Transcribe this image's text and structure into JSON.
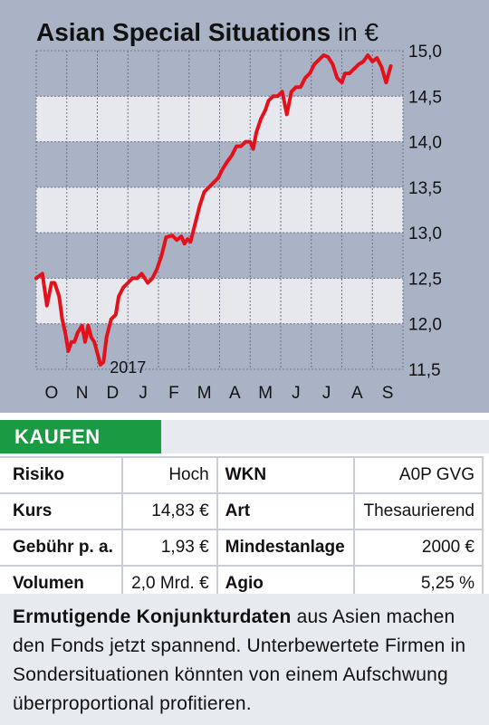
{
  "header": {
    "title_bold": "Asian Special Situations",
    "title_unit": "in €"
  },
  "chart_data": {
    "type": "line",
    "title": "Asian Special Situations in €",
    "xlabel": "",
    "ylabel": "",
    "x_tick_labels": [
      "O",
      "N",
      "D",
      "J",
      "F",
      "M",
      "A",
      "M",
      "J",
      "J",
      "A",
      "S"
    ],
    "year_annotation": "2017",
    "yticks": [
      11.5,
      12.0,
      12.5,
      13.0,
      13.5,
      14.0,
      14.5,
      15.0
    ],
    "ytick_labels": [
      "11,5",
      "12,0",
      "12,5",
      "13,0",
      "13,5",
      "14,0",
      "14,5",
      "15,0"
    ],
    "ylim": [
      11.5,
      15.0
    ],
    "xlim": [
      0,
      12
    ],
    "grid": true,
    "line_color": "#e3111b",
    "series": [
      {
        "x": [
          0.0,
          0.2,
          0.35,
          0.5,
          0.6,
          0.75,
          0.85,
          0.95,
          1.05,
          1.15,
          1.25,
          1.35,
          1.5,
          1.6,
          1.7,
          1.8,
          1.9,
          2.0,
          2.1,
          2.2,
          2.3,
          2.45,
          2.6,
          2.7,
          2.85,
          3.0,
          3.15,
          3.3,
          3.45,
          3.55,
          3.65,
          3.8,
          3.95,
          4.1,
          4.25,
          4.45,
          4.6,
          4.75,
          4.85,
          4.95,
          5.05,
          5.2,
          5.35,
          5.5,
          5.65,
          5.8,
          5.95,
          6.1,
          6.25,
          6.4,
          6.55,
          6.7,
          6.85,
          7.0,
          7.1,
          7.2,
          7.35,
          7.5,
          7.6,
          7.75,
          7.9,
          8.05,
          8.2,
          8.35,
          8.5,
          8.65,
          8.8,
          8.95,
          9.1,
          9.25,
          9.4,
          9.55,
          9.7,
          9.85,
          10.0,
          10.1,
          10.25,
          10.4,
          10.55,
          10.7,
          10.85,
          11.0,
          11.15,
          11.3,
          11.45,
          11.6
        ],
        "y": [
          12.5,
          12.55,
          12.2,
          12.45,
          12.45,
          12.3,
          12.05,
          11.9,
          11.7,
          11.8,
          11.8,
          11.9,
          11.98,
          11.8,
          11.98,
          11.85,
          11.8,
          11.68,
          11.55,
          11.58,
          11.85,
          12.05,
          12.1,
          12.3,
          12.4,
          12.45,
          12.5,
          12.5,
          12.55,
          12.5,
          12.45,
          12.5,
          12.6,
          12.75,
          12.95,
          12.97,
          12.92,
          12.96,
          12.88,
          12.93,
          12.9,
          13.1,
          13.3,
          13.45,
          13.5,
          13.55,
          13.6,
          13.7,
          13.78,
          13.85,
          13.95,
          13.95,
          14.0,
          14.0,
          13.92,
          14.1,
          14.25,
          14.35,
          14.45,
          14.5,
          14.5,
          14.55,
          14.3,
          14.55,
          14.6,
          14.6,
          14.7,
          14.75,
          14.85,
          14.9,
          14.95,
          14.93,
          14.85,
          14.7,
          14.65,
          14.75,
          14.75,
          14.8,
          14.85,
          14.88,
          14.95,
          14.88,
          14.92,
          14.82,
          14.65,
          14.83
        ]
      }
    ]
  },
  "buy": {
    "label": "KAUFEN"
  },
  "facts": [
    {
      "k1": "Risiko",
      "v1": "Hoch",
      "k2": "WKN",
      "v2": "A0P GVG"
    },
    {
      "k1": "Kurs",
      "v1": "14,83 €",
      "k2": "Art",
      "v2": "Thesaurierend"
    },
    {
      "k1": "Gebühr p. a.",
      "v1": "1,93 €",
      "k2": "Mindestanlage",
      "v2": "2000 €"
    },
    {
      "k1": "Volumen",
      "v1": "2,0 Mrd. €",
      "k2": "Agio",
      "v2": "5,25 %"
    }
  ],
  "note": {
    "lead": "Ermutigende Konjunkturdaten",
    "rest": " aus Asien machen den Fonds jetzt spannend. Unterbewertete Firmen in Sondersituationen könnten von einem Aufschwung überproportional profitieren."
  }
}
